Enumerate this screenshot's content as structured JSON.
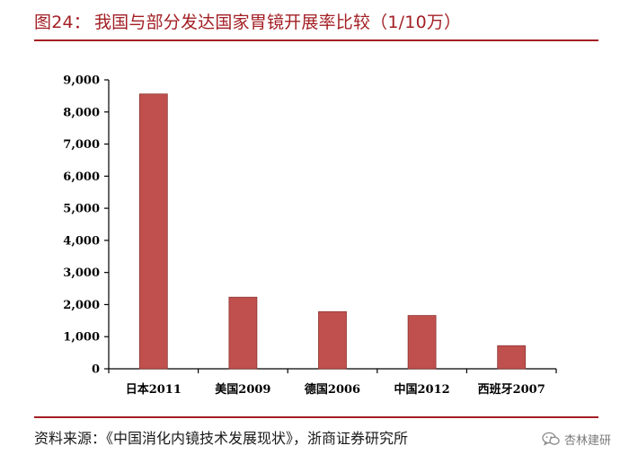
{
  "header": {
    "figure_no": "图24：",
    "title": "我国与部分发达国家胃镜开展率比较（1/10万）"
  },
  "chart_data": {
    "type": "bar",
    "title": "我国与部分发达国家胃镜开展率比较（1/10万）",
    "categories": [
      "日本2011",
      "美国2009",
      "德国2006",
      "中国2012",
      "西班牙2007"
    ],
    "values": [
      8560,
      2230,
      1780,
      1660,
      720
    ],
    "xlabel": "",
    "ylabel": "",
    "ylim": [
      0,
      9000
    ],
    "yticks": [
      0,
      1000,
      2000,
      3000,
      4000,
      5000,
      6000,
      7000,
      8000,
      9000
    ],
    "ytick_labels": [
      "0",
      "1,000",
      "2,000",
      "3,000",
      "4,000",
      "5,000",
      "6,000",
      "7,000",
      "8,000",
      "9,000"
    ],
    "grid": false,
    "legend": "none",
    "bar_color": "#c0504d",
    "bar_edge_color": "#8c3533"
  },
  "footer": {
    "source": "资料来源：《中国消化内镜技术发展现状》，浙商证券研究所",
    "watermark_text": "杏林建研",
    "watermark_icon": "wechat-icon"
  },
  "colors": {
    "accent": "#a31f24"
  }
}
